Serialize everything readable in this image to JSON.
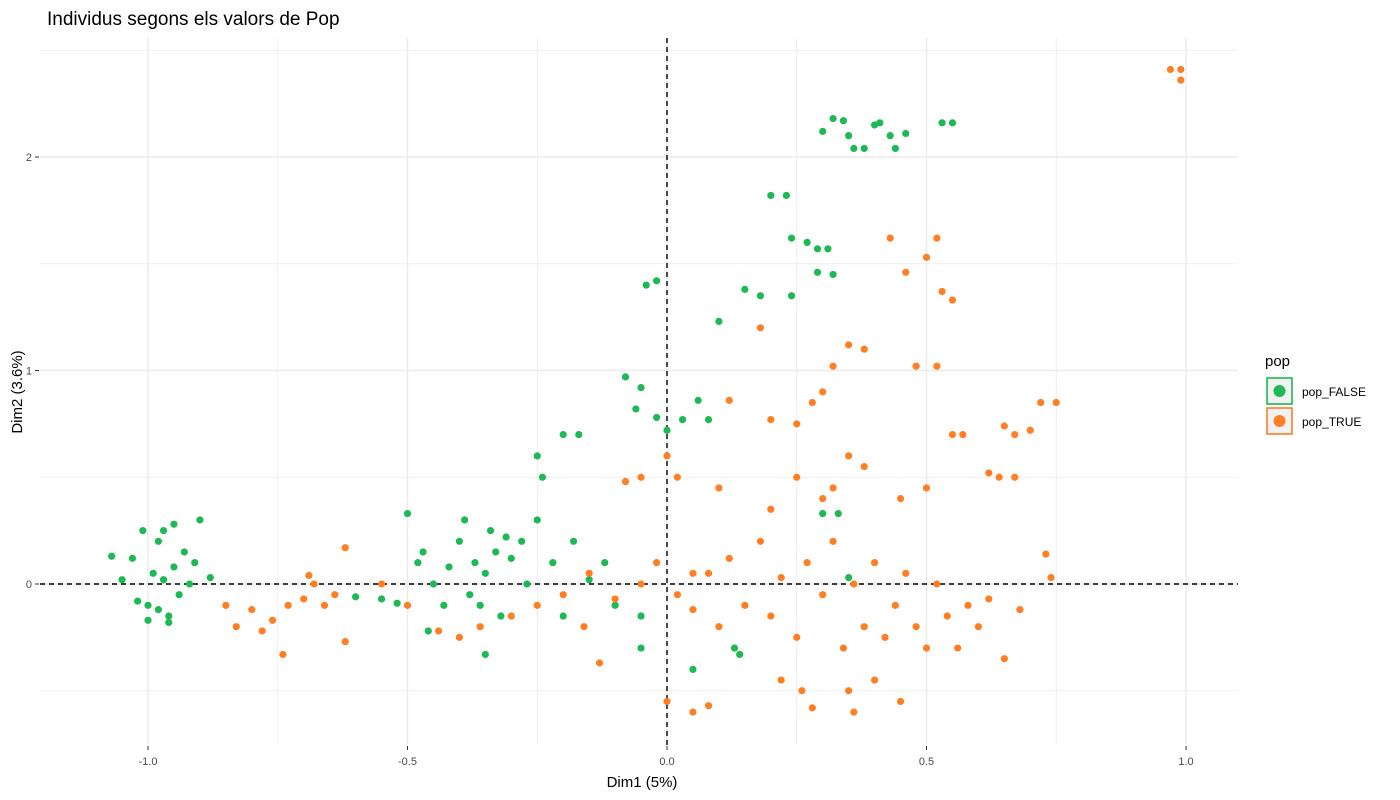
{
  "chart_data": {
    "type": "scatter",
    "title": "Individus segons els valors de Pop",
    "xlabel": "Dim1 (5%)",
    "ylabel": "Dim2 (3.6%)",
    "xlim": [
      -1.2,
      1.1
    ],
    "ylim": [
      -0.75,
      2.5
    ],
    "x_ticks": [
      -1.0,
      -0.5,
      0.0,
      0.5,
      1.0
    ],
    "x_tick_labels": [
      "-1.0",
      "-0.5",
      "0.0",
      "0.5",
      "1.0"
    ],
    "y_ticks": [
      0,
      1,
      2
    ],
    "y_tick_labels": [
      "0",
      "1",
      "2"
    ],
    "reference_lines": {
      "x": 0,
      "y": 0,
      "style": "dashed"
    },
    "grid": true,
    "legend": {
      "title": "pop",
      "position": "right"
    },
    "series": [
      {
        "name": "pop_FALSE",
        "color": "#1db954",
        "points": [
          [
            -1.0,
            -0.1
          ],
          [
            -0.98,
            -0.12
          ],
          [
            -0.96,
            -0.15
          ],
          [
            -1.02,
            -0.08
          ],
          [
            -0.99,
            0.05
          ],
          [
            -0.97,
            0.02
          ],
          [
            -0.95,
            0.08
          ],
          [
            -1.03,
            0.12
          ],
          [
            -0.93,
            0.15
          ],
          [
            -0.98,
            0.2
          ],
          [
            -1.01,
            0.25
          ],
          [
            -0.92,
            0.0
          ],
          [
            -0.94,
            -0.05
          ],
          [
            -1.05,
            0.02
          ],
          [
            -1.07,
            0.13
          ],
          [
            -0.97,
            0.25
          ],
          [
            -0.9,
            0.3
          ],
          [
            -0.88,
            0.03
          ],
          [
            -1.0,
            -0.17
          ],
          [
            -0.96,
            -0.18
          ],
          [
            -0.91,
            0.1
          ],
          [
            -0.95,
            0.28
          ],
          [
            -0.37,
            0.1
          ],
          [
            -0.35,
            0.05
          ],
          [
            -0.33,
            0.15
          ],
          [
            -0.4,
            0.2
          ],
          [
            -0.42,
            0.08
          ],
          [
            -0.38,
            -0.05
          ],
          [
            -0.36,
            -0.1
          ],
          [
            -0.34,
            0.25
          ],
          [
            -0.3,
            0.12
          ],
          [
            -0.28,
            0.2
          ],
          [
            -0.45,
            0.0
          ],
          [
            -0.47,
            0.15
          ],
          [
            -0.32,
            -0.15
          ],
          [
            -0.39,
            0.3
          ],
          [
            -0.43,
            -0.1
          ],
          [
            -0.46,
            -0.22
          ],
          [
            -0.35,
            -0.33
          ],
          [
            -0.25,
            0.3
          ],
          [
            -0.27,
            0.0
          ],
          [
            -0.31,
            0.22
          ],
          [
            -0.5,
            0.33
          ],
          [
            -0.48,
            0.1
          ],
          [
            -0.24,
            0.5
          ],
          [
            -0.25,
            0.6
          ],
          [
            -0.2,
            0.7
          ],
          [
            -0.17,
            0.7
          ],
          [
            -0.22,
            0.1
          ],
          [
            -0.18,
            0.2
          ],
          [
            -0.12,
            0.1
          ],
          [
            -0.15,
            0.02
          ],
          [
            -0.1,
            -0.1
          ],
          [
            -0.05,
            -0.15
          ],
          [
            0.0,
            0.72
          ],
          [
            -0.02,
            0.78
          ],
          [
            0.03,
            0.77
          ],
          [
            0.08,
            0.77
          ],
          [
            -0.06,
            0.82
          ],
          [
            -0.08,
            0.97
          ],
          [
            -0.05,
            0.92
          ],
          [
            0.06,
            0.86
          ],
          [
            -0.04,
            1.4
          ],
          [
            -0.02,
            1.42
          ],
          [
            0.1,
            1.23
          ],
          [
            0.15,
            1.38
          ],
          [
            0.18,
            1.35
          ],
          [
            0.24,
            1.35
          ],
          [
            0.2,
            1.82
          ],
          [
            0.23,
            1.82
          ],
          [
            0.24,
            1.62
          ],
          [
            0.27,
            1.6
          ],
          [
            0.29,
            1.57
          ],
          [
            0.31,
            1.57
          ],
          [
            0.29,
            1.46
          ],
          [
            0.32,
            1.45
          ],
          [
            0.3,
            2.12
          ],
          [
            0.32,
            2.18
          ],
          [
            0.34,
            2.17
          ],
          [
            0.35,
            2.1
          ],
          [
            0.36,
            2.04
          ],
          [
            0.38,
            2.04
          ],
          [
            0.4,
            2.15
          ],
          [
            0.41,
            2.16
          ],
          [
            0.43,
            2.1
          ],
          [
            0.44,
            2.04
          ],
          [
            0.46,
            2.11
          ],
          [
            0.53,
            2.16
          ],
          [
            0.55,
            2.16
          ],
          [
            -0.6,
            -0.06
          ],
          [
            -0.55,
            -0.07
          ],
          [
            -0.52,
            -0.09
          ],
          [
            -0.2,
            -0.15
          ],
          [
            0.3,
            0.33
          ],
          [
            0.33,
            0.33
          ],
          [
            0.35,
            0.03
          ],
          [
            0.13,
            -0.3
          ],
          [
            -0.05,
            -0.3
          ],
          [
            0.05,
            -0.4
          ],
          [
            0.14,
            -0.33
          ]
        ]
      },
      {
        "name": "pop_TRUE",
        "color": "#ff7f24",
        "points": [
          [
            -0.85,
            -0.1
          ],
          [
            -0.83,
            -0.2
          ],
          [
            -0.8,
            -0.12
          ],
          [
            -0.78,
            -0.22
          ],
          [
            -0.76,
            -0.17
          ],
          [
            -0.74,
            -0.33
          ],
          [
            -0.73,
            -0.1
          ],
          [
            -0.7,
            -0.07
          ],
          [
            -0.68,
            0.0
          ],
          [
            -0.66,
            -0.1
          ],
          [
            -0.64,
            -0.05
          ],
          [
            -0.62,
            0.17
          ],
          [
            -0.62,
            -0.27
          ],
          [
            -0.69,
            0.04
          ],
          [
            -0.44,
            -0.22
          ],
          [
            -0.4,
            -0.25
          ],
          [
            -0.36,
            -0.2
          ],
          [
            -0.3,
            -0.15
          ],
          [
            -0.25,
            -0.1
          ],
          [
            -0.2,
            -0.05
          ],
          [
            -0.15,
            0.05
          ],
          [
            -0.1,
            -0.07
          ],
          [
            -0.05,
            0.0
          ],
          [
            -0.02,
            0.1
          ],
          [
            0.02,
            -0.05
          ],
          [
            0.05,
            -0.12
          ],
          [
            0.08,
            0.05
          ],
          [
            0.1,
            -0.2
          ],
          [
            0.12,
            0.12
          ],
          [
            0.15,
            -0.1
          ],
          [
            0.18,
            0.2
          ],
          [
            0.2,
            -0.15
          ],
          [
            0.22,
            0.03
          ],
          [
            0.25,
            -0.25
          ],
          [
            0.27,
            0.1
          ],
          [
            0.3,
            -0.05
          ],
          [
            0.32,
            0.2
          ],
          [
            0.34,
            -0.3
          ],
          [
            0.36,
            0.0
          ],
          [
            0.38,
            -0.2
          ],
          [
            0.4,
            0.1
          ],
          [
            0.42,
            -0.25
          ],
          [
            0.44,
            -0.1
          ],
          [
            0.46,
            0.05
          ],
          [
            0.48,
            -0.2
          ],
          [
            0.5,
            -0.3
          ],
          [
            0.52,
            0.0
          ],
          [
            0.54,
            -0.15
          ],
          [
            0.56,
            -0.3
          ],
          [
            0.58,
            -0.1
          ],
          [
            0.6,
            -0.2
          ],
          [
            0.62,
            -0.07
          ],
          [
            0.65,
            -0.35
          ],
          [
            0.68,
            -0.12
          ],
          [
            0.35,
            0.6
          ],
          [
            0.38,
            0.55
          ],
          [
            0.32,
            0.45
          ],
          [
            0.3,
            0.4
          ],
          [
            0.25,
            0.5
          ],
          [
            0.2,
            0.35
          ],
          [
            0.45,
            0.4
          ],
          [
            0.5,
            0.45
          ],
          [
            0.28,
            0.85
          ],
          [
            0.3,
            0.9
          ],
          [
            0.35,
            1.12
          ],
          [
            0.38,
            1.1
          ],
          [
            0.32,
            1.02
          ],
          [
            0.43,
            1.62
          ],
          [
            0.52,
            1.62
          ],
          [
            0.5,
            1.53
          ],
          [
            0.46,
            1.46
          ],
          [
            0.53,
            1.37
          ],
          [
            0.55,
            1.33
          ],
          [
            0.48,
            1.02
          ],
          [
            0.52,
            1.02
          ],
          [
            0.55,
            0.7
          ],
          [
            0.57,
            0.7
          ],
          [
            0.65,
            0.74
          ],
          [
            0.67,
            0.7
          ],
          [
            0.7,
            0.72
          ],
          [
            0.72,
            0.85
          ],
          [
            0.75,
            0.85
          ],
          [
            0.62,
            0.52
          ],
          [
            0.64,
            0.5
          ],
          [
            0.67,
            0.5
          ],
          [
            0.73,
            0.14
          ],
          [
            0.74,
            0.03
          ],
          [
            0.18,
            1.2
          ],
          [
            0.12,
            0.86
          ],
          [
            0.2,
            0.77
          ],
          [
            0.25,
            0.75
          ],
          [
            0.1,
            0.45
          ],
          [
            0.0,
            0.6
          ],
          [
            0.02,
            0.5
          ],
          [
            -0.05,
            0.5
          ],
          [
            -0.08,
            0.48
          ],
          [
            0.05,
            0.05
          ],
          [
            0.0,
            -0.55
          ],
          [
            0.05,
            -0.6
          ],
          [
            0.08,
            -0.57
          ],
          [
            0.22,
            -0.45
          ],
          [
            0.26,
            -0.5
          ],
          [
            0.28,
            -0.58
          ],
          [
            0.35,
            -0.5
          ],
          [
            0.4,
            -0.45
          ],
          [
            0.45,
            -0.55
          ],
          [
            0.36,
            -0.6
          ],
          [
            0.97,
            2.41
          ],
          [
            0.99,
            2.41
          ],
          [
            0.99,
            2.36
          ],
          [
            -0.5,
            -0.1
          ],
          [
            -0.55,
            0.0
          ],
          [
            -0.13,
            -0.37
          ],
          [
            -0.16,
            -0.2
          ]
        ]
      }
    ]
  }
}
